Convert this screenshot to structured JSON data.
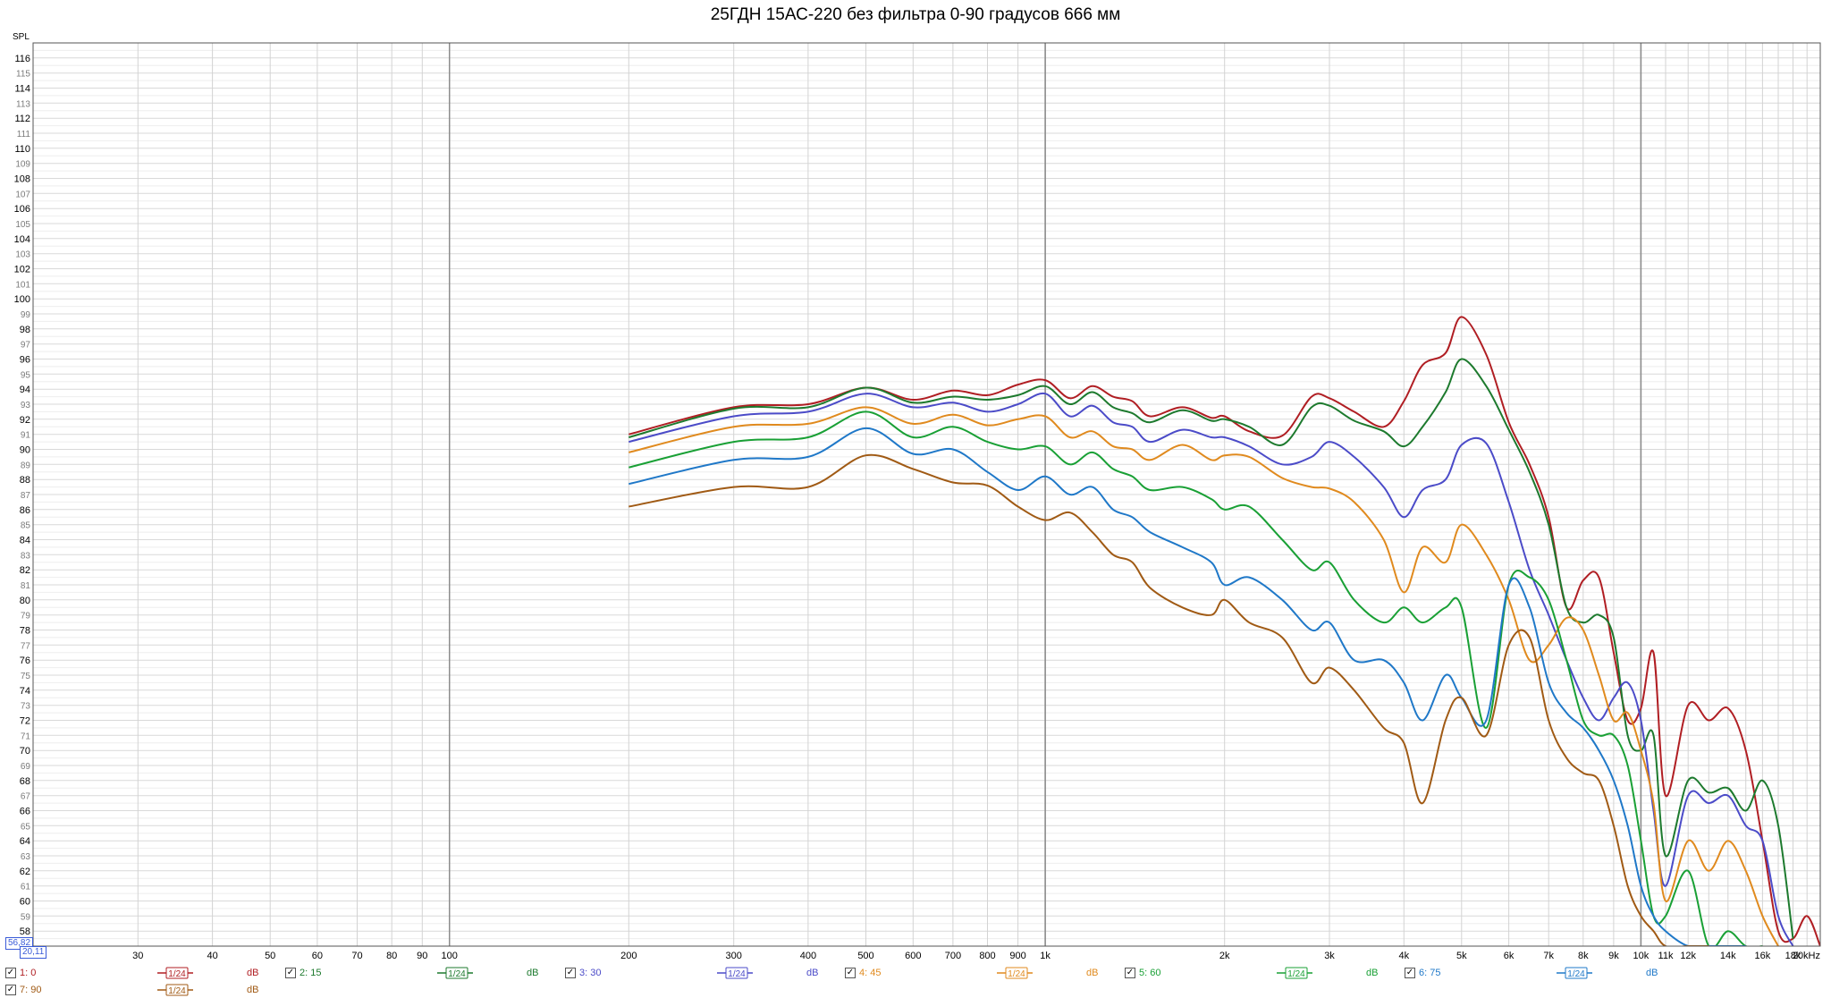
{
  "title": "25ГДН 15АС-220 без фильтра 0-90 градусов 666 мм",
  "ylabel": "SPL",
  "cursor_readouts": {
    "y_value": "56,82",
    "x_value": "20,11"
  },
  "chart_data": {
    "type": "line",
    "title": "25ГДН 15АС-220 без фильтра 0-90 градусов 666 мм",
    "ylabel": "SPL",
    "xlabel": "",
    "xscale": "log",
    "xlim": [
      20,
      20000
    ],
    "ylim": [
      57,
      117
    ],
    "grid": true,
    "y_ticks": [
      58,
      59,
      60,
      61,
      62,
      63,
      64,
      65,
      66,
      67,
      68,
      69,
      70,
      71,
      72,
      73,
      74,
      75,
      76,
      77,
      78,
      79,
      80,
      81,
      82,
      83,
      84,
      85,
      86,
      87,
      88,
      89,
      90,
      91,
      92,
      93,
      94,
      95,
      96,
      97,
      98,
      99,
      100,
      101,
      102,
      103,
      104,
      105,
      106,
      107,
      108,
      109,
      110,
      111,
      112,
      113,
      114,
      115,
      116
    ],
    "x_ticks": [
      {
        "v": 30,
        "label": "30"
      },
      {
        "v": 40,
        "label": "40"
      },
      {
        "v": 50,
        "label": "50"
      },
      {
        "v": 60,
        "label": "60"
      },
      {
        "v": 70,
        "label": "70"
      },
      {
        "v": 80,
        "label": "80"
      },
      {
        "v": 90,
        "label": "90"
      },
      {
        "v": 100,
        "label": "100"
      },
      {
        "v": 200,
        "label": "200"
      },
      {
        "v": 300,
        "label": "300"
      },
      {
        "v": 400,
        "label": "400"
      },
      {
        "v": 500,
        "label": "500"
      },
      {
        "v": 600,
        "label": "600"
      },
      {
        "v": 700,
        "label": "700"
      },
      {
        "v": 800,
        "label": "800"
      },
      {
        "v": 900,
        "label": "900"
      },
      {
        "v": 1000,
        "label": "1k"
      },
      {
        "v": 2000,
        "label": "2k"
      },
      {
        "v": 3000,
        "label": "3k"
      },
      {
        "v": 4000,
        "label": "4k"
      },
      {
        "v": 5000,
        "label": "5k"
      },
      {
        "v": 6000,
        "label": "6k"
      },
      {
        "v": 7000,
        "label": "7k"
      },
      {
        "v": 8000,
        "label": "8k"
      },
      {
        "v": 9000,
        "label": "9k"
      },
      {
        "v": 10000,
        "label": "10k"
      },
      {
        "v": 11000,
        "label": "11k"
      },
      {
        "v": 12000,
        "label": "12k"
      },
      {
        "v": 14000,
        "label": "14k"
      },
      {
        "v": 16000,
        "label": "16k"
      },
      {
        "v": 18000,
        "label": "18k"
      },
      {
        "v": 20000,
        "label": "20kHz"
      }
    ],
    "series": [
      {
        "name": "1: 0",
        "color": "#b01e23",
        "x": [
          200,
          300,
          400,
          500,
          600,
          700,
          800,
          900,
          1000,
          1100,
          1200,
          1300,
          1400,
          1500,
          1700,
          1900,
          2000,
          2200,
          2500,
          2800,
          3000,
          3300,
          3700,
          4000,
          4300,
          4700,
          5000,
          5500,
          6000,
          6500,
          7000,
          7500,
          8000,
          8500,
          9000,
          9500,
          10000,
          10500,
          11000,
          12000,
          13000,
          14000,
          15000,
          16000,
          17000,
          18000,
          19000,
          20000
        ],
        "y": [
          91,
          92.8,
          93,
          94.1,
          93.3,
          93.9,
          93.6,
          94.3,
          94.6,
          93.4,
          94.2,
          93.5,
          93.2,
          92.2,
          92.8,
          92.1,
          92.2,
          91.2,
          90.9,
          93.5,
          93.4,
          92.5,
          91.5,
          93.2,
          95.6,
          96.4,
          98.8,
          96.3,
          91.8,
          89,
          85.5,
          79.5,
          81.3,
          81.5,
          76.5,
          72,
          72.8,
          76.5,
          67,
          73,
          72,
          72.8,
          70,
          64,
          58,
          57.5,
          59,
          57
        ]
      },
      {
        "name": "2: 15",
        "color": "#1d7a2e",
        "x": [
          200,
          300,
          400,
          500,
          600,
          700,
          800,
          900,
          1000,
          1100,
          1200,
          1300,
          1400,
          1500,
          1700,
          1900,
          2000,
          2200,
          2500,
          2800,
          3000,
          3300,
          3700,
          4000,
          4300,
          4700,
          5000,
          5500,
          6000,
          6500,
          7000,
          7500,
          8000,
          8500,
          9000,
          9500,
          10000,
          10500,
          11000,
          12000,
          13000,
          14000,
          15000,
          16000,
          17000,
          18000
        ],
        "y": [
          90.8,
          92.7,
          92.8,
          94.1,
          93.1,
          93.5,
          93.3,
          93.6,
          94.2,
          93,
          93.8,
          92.8,
          92.4,
          91.8,
          92.6,
          91.9,
          92,
          91.5,
          90.3,
          92.8,
          92.9,
          91.9,
          91.2,
          90.2,
          91.5,
          93.8,
          96,
          94.2,
          91.3,
          88.5,
          85,
          79.5,
          78.5,
          79,
          77.5,
          71,
          70,
          71,
          63,
          68,
          67.2,
          67.5,
          66,
          68,
          65,
          57.5
        ]
      },
      {
        "name": "3: 30",
        "color": "#4b4bc8",
        "x": [
          200,
          300,
          400,
          500,
          600,
          700,
          800,
          900,
          1000,
          1100,
          1200,
          1300,
          1400,
          1500,
          1700,
          1900,
          2000,
          2200,
          2500,
          2800,
          3000,
          3300,
          3700,
          4000,
          4300,
          4700,
          5000,
          5500,
          6000,
          6500,
          7000,
          7500,
          8000,
          8500,
          9000,
          9500,
          10000,
          10500,
          11000,
          12000,
          13000,
          14000,
          15000,
          16000,
          17000,
          18000
        ],
        "y": [
          90.5,
          92.2,
          92.5,
          93.7,
          92.8,
          93.1,
          92.5,
          93,
          93.7,
          92.2,
          92.9,
          91.8,
          91.5,
          90.5,
          91.3,
          90.8,
          90.8,
          90.2,
          89,
          89.5,
          90.5,
          89.5,
          87.5,
          85.5,
          87.3,
          88,
          90.3,
          90.4,
          86.5,
          82,
          79,
          76,
          73.5,
          72,
          73.5,
          74.5,
          72,
          66,
          61,
          67,
          66.5,
          67,
          65,
          64,
          59,
          57
        ]
      },
      {
        "name": "4: 45",
        "color": "#e08a1e",
        "x": [
          200,
          300,
          400,
          500,
          600,
          700,
          800,
          900,
          1000,
          1100,
          1200,
          1300,
          1400,
          1500,
          1700,
          1900,
          2000,
          2200,
          2500,
          2800,
          3000,
          3300,
          3700,
          4000,
          4300,
          4700,
          5000,
          5500,
          6000,
          6500,
          7000,
          7500,
          8000,
          8500,
          9000,
          9500,
          10000,
          10500,
          11000,
          12000,
          13000,
          14000,
          15000,
          16000,
          17000
        ],
        "y": [
          89.8,
          91.5,
          91.7,
          92.8,
          91.7,
          92.3,
          91.6,
          92,
          92.2,
          90.8,
          91.2,
          90.2,
          90,
          89.3,
          90.3,
          89.3,
          89.6,
          89.5,
          88.1,
          87.5,
          87.4,
          86.5,
          84,
          80.5,
          83.5,
          82.5,
          85,
          83,
          80,
          76,
          77,
          78.8,
          78,
          75,
          72,
          72.5,
          70,
          66.5,
          60,
          64,
          62,
          64,
          62,
          59,
          57
        ]
      },
      {
        "name": "5: 60",
        "color": "#19a035",
        "x": [
          200,
          300,
          400,
          500,
          600,
          700,
          800,
          900,
          1000,
          1100,
          1200,
          1300,
          1400,
          1500,
          1700,
          1900,
          2000,
          2200,
          2500,
          2800,
          3000,
          3300,
          3700,
          4000,
          4300,
          4700,
          5000,
          5500,
          6000,
          6500,
          7000,
          7500,
          8000,
          8500,
          9000,
          9500,
          10000,
          10500,
          11000,
          12000,
          13000,
          14000,
          15000,
          16000
        ],
        "y": [
          88.8,
          90.5,
          90.8,
          92.5,
          90.8,
          91.5,
          90.5,
          90,
          90.2,
          89,
          89.8,
          88.7,
          88.2,
          87.3,
          87.5,
          86.7,
          86,
          86.2,
          84,
          82,
          82.5,
          80,
          78.5,
          79.5,
          78.5,
          79.5,
          79.5,
          71.5,
          81,
          81.5,
          80,
          76,
          72,
          71,
          71,
          69,
          64,
          59,
          59,
          62,
          57,
          58,
          57,
          57
        ]
      },
      {
        "name": "6: 75",
        "color": "#1f78c8",
        "x": [
          200,
          300,
          400,
          500,
          600,
          700,
          800,
          900,
          1000,
          1100,
          1200,
          1300,
          1400,
          1500,
          1700,
          1900,
          2000,
          2200,
          2500,
          2800,
          3000,
          3300,
          3700,
          4000,
          4300,
          4700,
          5000,
          5500,
          6000,
          6500,
          7000,
          7500,
          8000,
          8500,
          9000,
          9500,
          10000,
          10500,
          11000,
          12000,
          13000,
          14000,
          15000
        ],
        "y": [
          87.7,
          89.3,
          89.5,
          91.4,
          89.7,
          90,
          88.5,
          87.3,
          88.2,
          87,
          87.5,
          86,
          85.5,
          84.5,
          83.5,
          82.5,
          81,
          81.5,
          80,
          78,
          78.5,
          76,
          76,
          74.5,
          72,
          75,
          73.5,
          72,
          81,
          79.5,
          74.5,
          72.5,
          71.5,
          70,
          68,
          65,
          61,
          59,
          58,
          57,
          57,
          57,
          57
        ]
      },
      {
        "name": "7: 90",
        "color": "#a05a14",
        "x": [
          200,
          300,
          400,
          500,
          600,
          700,
          800,
          900,
          1000,
          1100,
          1200,
          1300,
          1400,
          1500,
          1700,
          1900,
          2000,
          2200,
          2500,
          2800,
          3000,
          3300,
          3700,
          4000,
          4300,
          4700,
          5000,
          5500,
          6000,
          6500,
          7000,
          7500,
          8000,
          8500,
          9000,
          9500,
          10000,
          10500,
          11000,
          12000,
          13000
        ],
        "y": [
          86.2,
          87.5,
          87.5,
          89.6,
          88.7,
          87.8,
          87.6,
          86.2,
          85.3,
          85.8,
          84.5,
          83,
          82.5,
          80.8,
          79.5,
          79,
          80,
          78.5,
          77.5,
          74.5,
          75.5,
          74,
          71.5,
          70.5,
          66.5,
          72,
          73.5,
          71,
          77,
          77.5,
          72,
          69.5,
          68.5,
          68,
          65,
          61,
          59,
          58,
          57,
          57,
          57
        ]
      }
    ]
  },
  "legend": [
    {
      "label": "1: 0",
      "smoothing": "1/24",
      "unit": "dB",
      "color": "#b01e23"
    },
    {
      "label": "2: 15",
      "smoothing": "1/24",
      "unit": "dB",
      "color": "#1d7a2e"
    },
    {
      "label": "3: 30",
      "smoothing": "1/24",
      "unit": "dB",
      "color": "#4b4bc8"
    },
    {
      "label": "4: 45",
      "smoothing": "1/24",
      "unit": "dB",
      "color": "#e08a1e"
    },
    {
      "label": "5: 60",
      "smoothing": "1/24",
      "unit": "dB",
      "color": "#19a035"
    },
    {
      "label": "6: 75",
      "smoothing": "1/24",
      "unit": "dB",
      "color": "#1f78c8"
    },
    {
      "label": "7: 90",
      "smoothing": "1/24",
      "unit": "dB",
      "color": "#a05a14"
    }
  ]
}
